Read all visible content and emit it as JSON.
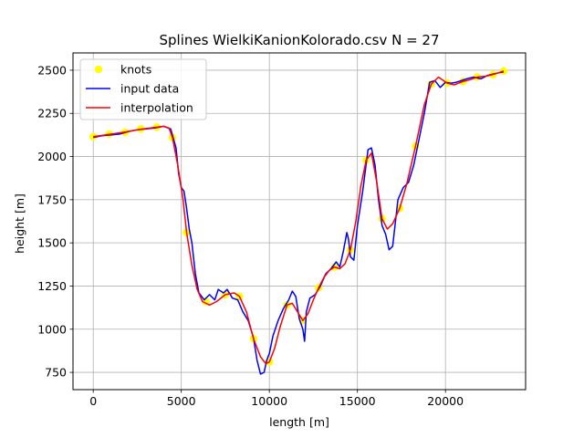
{
  "chart_data": {
    "type": "line",
    "title": "Splines WielkiKanionKolorado.csv N = 27",
    "xlabel": "length [m]",
    "ylabel": "height [m]",
    "xlim": [
      -1150,
      24550
    ],
    "ylim": [
      650,
      2600
    ],
    "xticks": [
      0,
      5000,
      10000,
      15000,
      20000
    ],
    "yticks": [
      750,
      1000,
      1250,
      1500,
      1750,
      2000,
      2250,
      2500
    ],
    "grid": true,
    "legend_position": "top-left",
    "series": [
      {
        "name": "knots",
        "style": "markers",
        "color": "#ffff00",
        "x": [
          0,
          900,
          1800,
          2700,
          3600,
          4500,
          5300,
          6400,
          7500,
          8300,
          9100,
          10000,
          11000,
          11900,
          12800,
          13700,
          14600,
          15500,
          16400,
          17400,
          18300,
          19200,
          20100,
          21000,
          21800,
          22700,
          23300
        ],
        "y": [
          2115,
          2130,
          2140,
          2160,
          2170,
          2110,
          1560,
          1160,
          1200,
          1190,
          945,
          810,
          1140,
          1050,
          1240,
          1360,
          1460,
          1980,
          1640,
          1700,
          2060,
          2420,
          2425,
          2435,
          2460,
          2475,
          2495
        ]
      },
      {
        "name": "input data",
        "style": "line",
        "color": "#0000ff",
        "x": [
          0,
          500,
          1000,
          1500,
          2000,
          2500,
          3000,
          3500,
          4000,
          4400,
          4700,
          4850,
          5000,
          5150,
          5300,
          5450,
          5600,
          5800,
          6000,
          6300,
          6600,
          6900,
          7100,
          7400,
          7600,
          7900,
          8200,
          8500,
          8800,
          9100,
          9300,
          9500,
          9700,
          9850,
          10000,
          10200,
          10500,
          10800,
          11100,
          11300,
          11500,
          11700,
          11900,
          12000,
          12100,
          12300,
          12600,
          12900,
          13200,
          13500,
          13800,
          14000,
          14200,
          14400,
          14500,
          14600,
          14800,
          15000,
          15300,
          15600,
          15800,
          16000,
          16200,
          16400,
          16600,
          16800,
          17000,
          17300,
          17600,
          17900,
          18200,
          18500,
          18800,
          19100,
          19400,
          19700,
          20000,
          20300,
          20600,
          20900,
          21200,
          21600,
          22000,
          22400,
          22800,
          23300
        ],
        "y": [
          2110,
          2120,
          2125,
          2130,
          2145,
          2155,
          2160,
          2165,
          2175,
          2160,
          2050,
          1900,
          1820,
          1800,
          1700,
          1580,
          1500,
          1320,
          1210,
          1170,
          1200,
          1170,
          1230,
          1210,
          1230,
          1180,
          1170,
          1100,
          1050,
          950,
          820,
          740,
          750,
          820,
          860,
          960,
          1050,
          1120,
          1170,
          1220,
          1190,
          1060,
          1000,
          930,
          1100,
          1180,
          1200,
          1250,
          1320,
          1350,
          1390,
          1360,
          1450,
          1560,
          1520,
          1420,
          1400,
          1600,
          1800,
          2040,
          2050,
          1950,
          1750,
          1600,
          1550,
          1460,
          1480,
          1750,
          1820,
          1850,
          1950,
          2100,
          2250,
          2430,
          2440,
          2400,
          2430,
          2425,
          2430,
          2440,
          2450,
          2460,
          2450,
          2470,
          2480,
          2490
        ]
      },
      {
        "name": "interpolation",
        "style": "line",
        "color": "#ff0000",
        "x": [
          0,
          900,
          1800,
          2700,
          3600,
          4000,
          4300,
          4500,
          4800,
          5100,
          5300,
          5600,
          5900,
          6200,
          6600,
          7000,
          7500,
          8000,
          8300,
          8700,
          9100,
          9500,
          9800,
          10000,
          10300,
          10600,
          11000,
          11300,
          11600,
          11900,
          12200,
          12500,
          12800,
          13100,
          13400,
          13700,
          14000,
          14300,
          14600,
          14900,
          15200,
          15500,
          15800,
          16100,
          16400,
          16700,
          17000,
          17400,
          17800,
          18300,
          18800,
          19200,
          19600,
          20100,
          20500,
          21000,
          21400,
          21800,
          22300,
          22700,
          23000,
          23300
        ],
        "y": [
          2115,
          2128,
          2142,
          2158,
          2170,
          2175,
          2165,
          2110,
          1950,
          1750,
          1560,
          1370,
          1230,
          1160,
          1140,
          1160,
          1200,
          1210,
          1190,
          1100,
          945,
          840,
          800,
          810,
          890,
          1010,
          1140,
          1150,
          1100,
          1050,
          1090,
          1170,
          1240,
          1300,
          1340,
          1360,
          1350,
          1380,
          1460,
          1620,
          1830,
          1980,
          2020,
          1850,
          1640,
          1580,
          1610,
          1700,
          1840,
          2060,
          2300,
          2420,
          2460,
          2425,
          2415,
          2435,
          2445,
          2460,
          2465,
          2475,
          2485,
          2495
        ]
      }
    ]
  }
}
